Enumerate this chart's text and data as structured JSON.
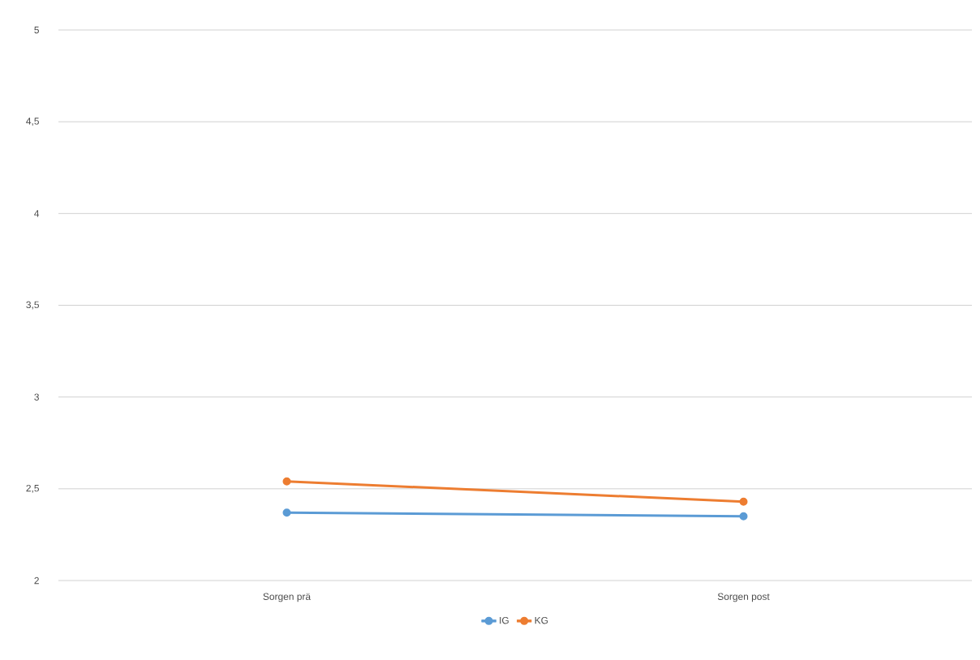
{
  "chart_data": {
    "type": "line",
    "categories": [
      "Sorgen prä",
      "Sorgen post"
    ],
    "series": [
      {
        "name": "IG",
        "color": "#5b9bd5",
        "values": [
          2.37,
          2.35
        ]
      },
      {
        "name": "KG",
        "color": "#ed7d31",
        "values": [
          2.54,
          2.43
        ]
      }
    ],
    "ylim": [
      2,
      5
    ],
    "yticks": [
      2,
      {
        "value": 2.5,
        "label": "2,5"
      },
      3,
      {
        "value": 3.5,
        "label": "3,5"
      },
      4,
      {
        "value": 4.5,
        "label": "4,5"
      },
      5
    ],
    "grid": "y",
    "legend": "bottom",
    "marker": "circle",
    "line_style": "solid"
  }
}
